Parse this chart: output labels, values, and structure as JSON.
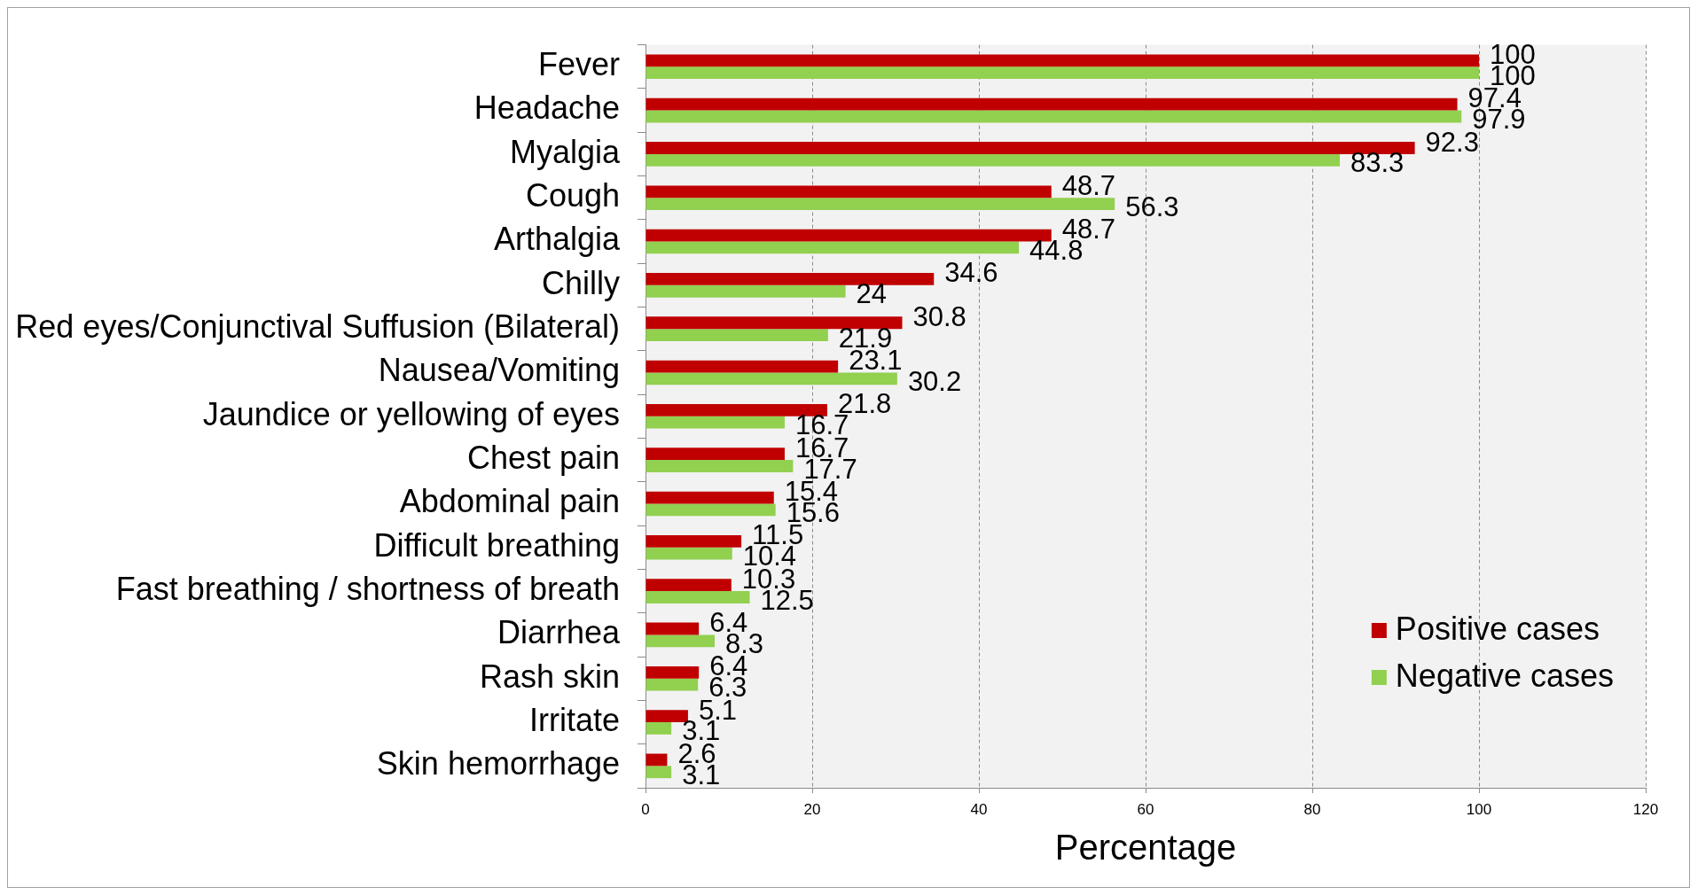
{
  "chart_data": {
    "type": "bar",
    "orientation": "horizontal",
    "categories": [
      "Fever",
      "Headache",
      "Myalgia",
      "Cough",
      "Arthalgia",
      "Chilly",
      "Red eyes/Conjunctival Suffusion (Bilateral)",
      "Nausea/Vomiting",
      "Jaundice or yellowing of eyes",
      "Chest pain",
      "Abdominal pain",
      "Difficult breathing",
      "Fast breathing / shortness of breath",
      "Diarrhea",
      "Rash skin",
      "Irritate",
      "Skin hemorrhage"
    ],
    "series": [
      {
        "name": "Positive cases",
        "color": "#c00000",
        "values": [
          100,
          97.4,
          92.3,
          48.7,
          48.7,
          34.6,
          30.8,
          23.1,
          21.8,
          16.7,
          15.4,
          11.5,
          10.3,
          6.4,
          6.4,
          5.1,
          2.6
        ]
      },
      {
        "name": "Negative cases",
        "color": "#92d050",
        "values": [
          100,
          97.9,
          83.3,
          56.3,
          44.8,
          24,
          21.9,
          30.2,
          16.7,
          17.7,
          15.6,
          10.4,
          12.5,
          8.3,
          6.3,
          3.1,
          3.1
        ]
      }
    ],
    "xlabel": "Percentage",
    "xlim": [
      0,
      120
    ],
    "xticks": [
      0,
      20,
      40,
      60,
      80,
      100,
      120
    ],
    "grid": "x",
    "legend": "bottom right",
    "data_labels": true
  }
}
